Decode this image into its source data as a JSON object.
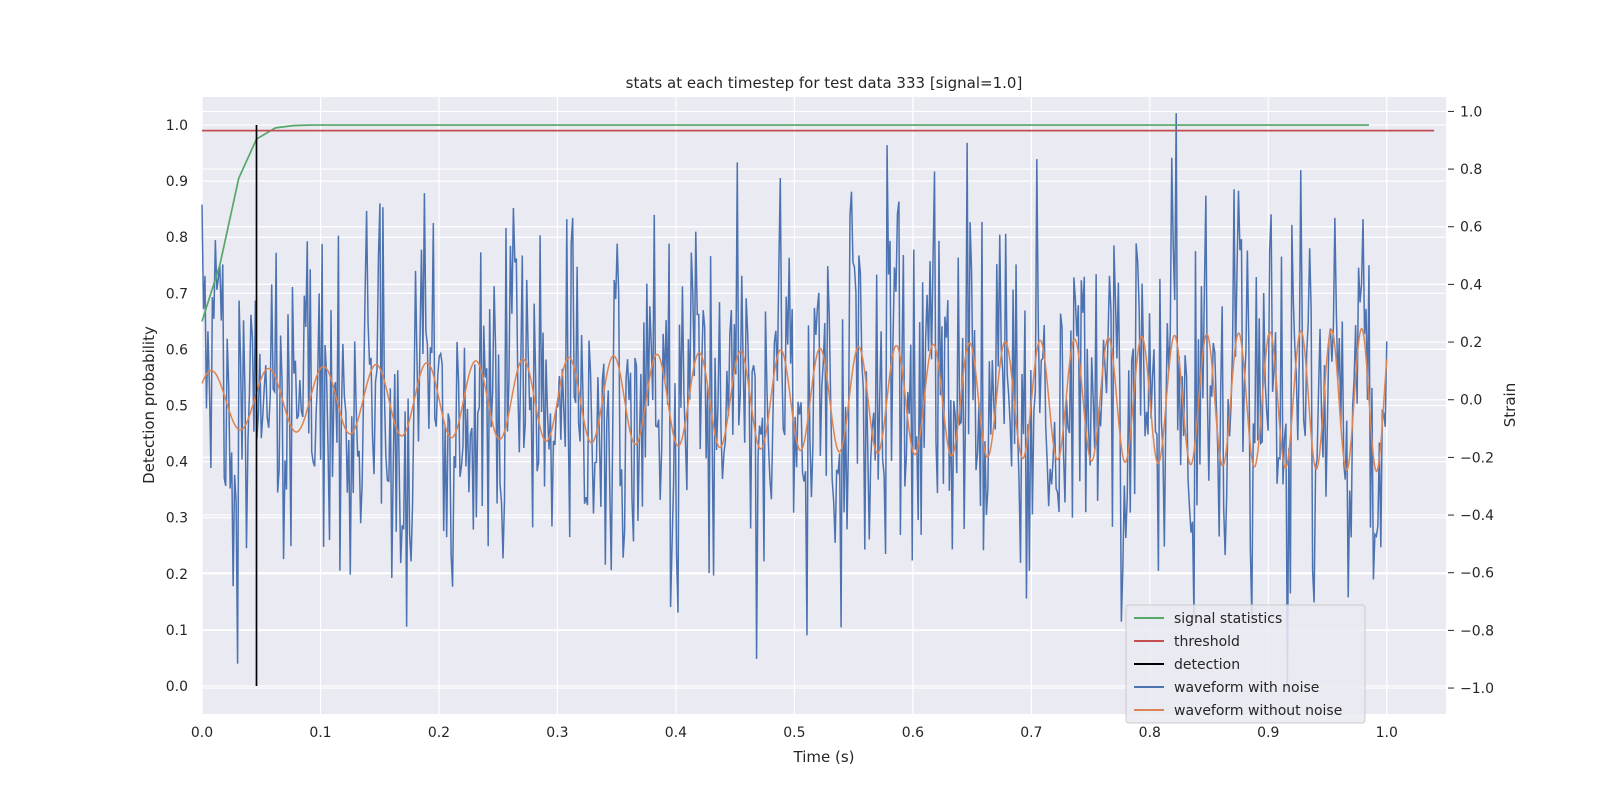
{
  "chart_data": {
    "type": "line",
    "title": "stats at each timestep for test data 333 [signal=1.0]",
    "xlabel": "Time (s)",
    "ylabel": "Detection probability",
    "y2label": "Strain",
    "xlim": [
      0.0,
      1.05
    ],
    "ylim": [
      -0.05,
      1.05
    ],
    "y2lim": [
      -1.09,
      1.05
    ],
    "x_ticks": [
      0.0,
      0.1,
      0.2,
      0.3,
      0.4,
      0.5,
      0.6,
      0.7,
      0.8,
      0.9,
      1.0
    ],
    "x_tick_labels": [
      "0.0",
      "0.1",
      "0.2",
      "0.3",
      "0.4",
      "0.5",
      "0.6",
      "0.7",
      "0.8",
      "0.9",
      "1.0"
    ],
    "y_ticks": [
      0.0,
      0.1,
      0.2,
      0.3,
      0.4,
      0.5,
      0.6,
      0.7,
      0.8,
      0.9,
      1.0
    ],
    "y_tick_labels": [
      "0.0",
      "0.1",
      "0.2",
      "0.3",
      "0.4",
      "0.5",
      "0.6",
      "0.7",
      "0.8",
      "0.9",
      "1.0"
    ],
    "y2_ticks": [
      -1.0,
      -0.8,
      -0.6,
      -0.4,
      -0.2,
      0.0,
      0.2,
      0.4,
      0.6,
      0.8,
      1.0
    ],
    "y2_tick_labels": [
      "−1.0",
      "−0.8",
      "−0.6",
      "−0.4",
      "−0.2",
      "0.0",
      "0.2",
      "0.4",
      "0.6",
      "0.8",
      "1.0"
    ],
    "grid": true,
    "legend_position": "lower-right",
    "legend": [
      {
        "label": "signal statistics",
        "color": "#55a868"
      },
      {
        "label": "threshold",
        "color": "#c44e52"
      },
      {
        "label": "detection",
        "color": "#000000"
      },
      {
        "label": "waveform with noise",
        "color": "#4c72b0"
      },
      {
        "label": "waveform without noise",
        "color": "#dd8452"
      }
    ],
    "series": [
      {
        "name": "signal statistics",
        "axis": "left",
        "color": "#55a868",
        "x": [
          0.0,
          0.015,
          0.031,
          0.046,
          0.062,
          0.077,
          0.092,
          0.2,
          0.4,
          0.6,
          0.8,
          0.985
        ],
        "y": [
          0.65,
          0.75,
          0.905,
          0.975,
          0.995,
          0.999,
          1.0,
          1.0,
          1.0,
          1.0,
          1.0,
          1.0
        ]
      },
      {
        "name": "threshold",
        "axis": "left",
        "color": "#c44e52",
        "x": [
          0.0,
          1.04
        ],
        "y": [
          0.99,
          0.99
        ]
      },
      {
        "name": "detection",
        "axis": "left",
        "color": "#000000",
        "x": [
          0.046,
          0.046
        ],
        "y": [
          0.0,
          1.0
        ]
      },
      {
        "name": "waveform with noise",
        "axis": "right",
        "color": "#4c72b0",
        "x_range": [
          0.0,
          1.0
        ],
        "points": 800,
        "y_range": [
          -1.0,
          1.0
        ]
      },
      {
        "name": "waveform without noise",
        "axis": "right",
        "color": "#dd8452",
        "x_range": [
          0.0,
          1.0
        ],
        "amplitude_start": 0.1,
        "amplitude_end": 0.25,
        "freq_start_hz": 20,
        "freq_end_hz": 40
      }
    ]
  }
}
